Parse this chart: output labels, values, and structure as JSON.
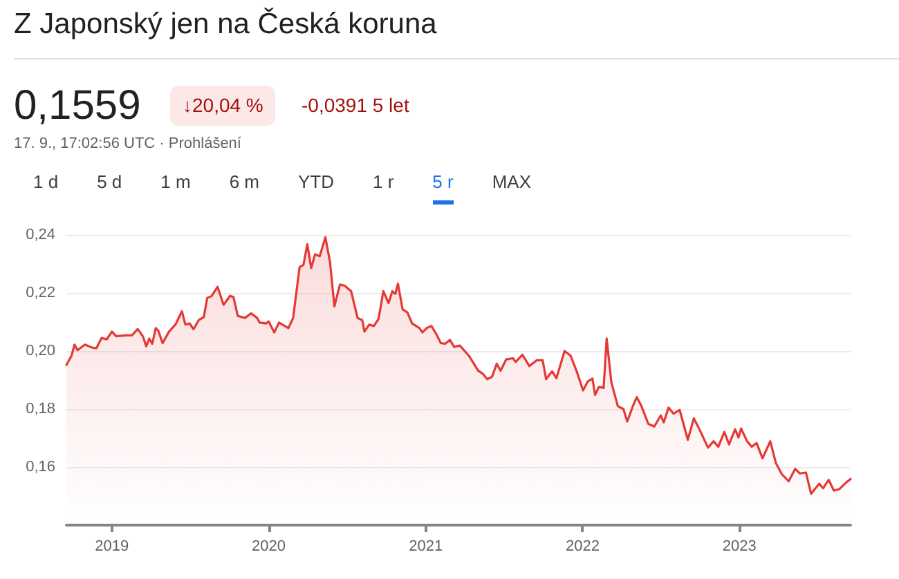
{
  "chart_data": {
    "type": "area",
    "title": "Z Japonský jen na Česká koruna",
    "annotations": [
      "0,1559",
      "↓20,04 %",
      "-0,0391 5 let",
      "17. 9., 17:02:56 UTC · Prohlášení",
      "1 d",
      "5 d",
      "1 m",
      "6 m",
      "YTD",
      "1 r",
      "5 r",
      "MAX"
    ],
    "x": [
      "2018-09-17",
      "2018-09-29",
      "2018-10-06",
      "2018-10-13",
      "2018-10-30",
      "2018-11-17",
      "2018-11-26",
      "2018-12-08",
      "2018-12-20",
      "2019-01-01",
      "2019-01-11",
      "2019-02-02",
      "2019-02-17",
      "2019-03-02",
      "2019-03-14",
      "2019-03-22",
      "2019-03-29",
      "2019-04-05",
      "2019-04-13",
      "2019-04-19",
      "2019-04-29",
      "2019-05-14",
      "2019-05-29",
      "2019-06-13",
      "2019-06-21",
      "2019-07-01",
      "2019-07-10",
      "2019-07-22",
      "2019-08-03",
      "2019-08-11",
      "2019-08-21",
      "2019-09-04",
      "2019-09-18",
      "2019-10-03",
      "2019-10-11",
      "2019-10-21",
      "2019-11-07",
      "2019-11-21",
      "2019-12-05",
      "2019-12-11",
      "2019-12-26",
      "2020-01-01",
      "2020-01-14",
      "2020-01-25",
      "2020-02-16",
      "2020-02-27",
      "2020-03-13",
      "2020-03-22",
      "2020-03-31",
      "2020-04-09",
      "2020-04-18",
      "2020-04-29",
      "2020-05-12",
      "2020-05-23",
      "2020-06-02",
      "2020-06-15",
      "2020-06-26",
      "2020-07-11",
      "2020-07-26",
      "2020-08-06",
      "2020-08-11",
      "2020-08-22",
      "2020-09-02",
      "2020-09-13",
      "2020-09-24",
      "2020-10-06",
      "2020-10-15",
      "2020-10-22",
      "2020-10-28",
      "2020-11-08",
      "2020-11-19",
      "2020-11-30",
      "2020-12-17",
      "2020-12-24",
      "2021-01-03",
      "2021-01-14",
      "2021-01-25",
      "2021-02-05",
      "2021-02-15",
      "2021-02-26",
      "2021-03-08",
      "2021-03-21",
      "2021-04-11",
      "2021-05-03",
      "2021-05-14",
      "2021-05-24",
      "2021-06-04",
      "2021-06-15",
      "2021-06-24",
      "2021-07-07",
      "2021-07-23",
      "2021-07-29",
      "2021-08-14",
      "2021-08-30",
      "2021-09-16",
      "2021-09-30",
      "2021-10-08",
      "2021-10-22",
      "2021-11-01",
      "2021-11-20",
      "2021-12-04",
      "2021-12-19",
      "2022-01-02",
      "2022-01-13",
      "2022-01-24",
      "2022-01-30",
      "2022-02-08",
      "2022-02-19",
      "2022-02-26",
      "2022-03-09",
      "2022-03-24",
      "2022-04-06",
      "2022-04-15",
      "2022-04-28",
      "2022-05-07",
      "2022-05-18",
      "2022-06-03",
      "2022-06-17",
      "2022-07-02",
      "2022-07-09",
      "2022-07-20",
      "2022-08-01",
      "2022-08-15",
      "2022-09-03",
      "2022-09-17",
      "2022-09-30",
      "2022-10-20",
      "2022-11-02",
      "2022-11-13",
      "2022-11-27",
      "2022-12-08",
      "2022-12-22",
      "2022-12-30",
      "2023-01-05",
      "2023-01-19",
      "2023-01-30",
      "2023-02-10",
      "2023-02-24",
      "2023-03-14",
      "2023-03-27",
      "2023-04-10",
      "2023-04-26",
      "2023-05-11",
      "2023-05-22",
      "2023-06-05",
      "2023-06-17",
      "2023-07-06",
      "2023-07-15",
      "2023-07-28",
      "2023-08-09",
      "2023-08-22",
      "2023-09-06",
      "2023-09-17"
    ],
    "series": [
      {
        "color": "#e53935",
        "values": [
          0.1952,
          0.1984,
          0.2022,
          0.2003,
          0.2022,
          0.2011,
          0.201,
          0.2045,
          0.204,
          0.2067,
          0.2051,
          0.2054,
          0.2054,
          0.2076,
          0.2051,
          0.2016,
          0.2043,
          0.2025,
          0.2079,
          0.207,
          0.2027,
          0.2067,
          0.2091,
          0.2137,
          0.2091,
          0.2095,
          0.2075,
          0.2106,
          0.2117,
          0.2183,
          0.2189,
          0.2221,
          0.2159,
          0.219,
          0.2186,
          0.2121,
          0.2114,
          0.213,
          0.2114,
          0.2098,
          0.2095,
          0.2102,
          0.2064,
          0.2098,
          0.2079,
          0.2114,
          0.2289,
          0.2297,
          0.2368,
          0.2286,
          0.2333,
          0.2327,
          0.2392,
          0.2305,
          0.2154,
          0.2229,
          0.2225,
          0.2206,
          0.2114,
          0.2106,
          0.2067,
          0.2091,
          0.2086,
          0.2111,
          0.2206,
          0.2165,
          0.2206,
          0.2197,
          0.2232,
          0.2143,
          0.2133,
          0.2095,
          0.2079,
          0.2064,
          0.2079,
          0.2086,
          0.2059,
          0.2027,
          0.2025,
          0.2038,
          0.2014,
          0.2019,
          0.1984,
          0.1932,
          0.1921,
          0.1903,
          0.1911,
          0.1956,
          0.1932,
          0.1971,
          0.1975,
          0.1962,
          0.1987,
          0.1948,
          0.1968,
          0.1968,
          0.1903,
          0.193,
          0.1906,
          0.2,
          0.1984,
          0.1927,
          0.1864,
          0.1895,
          0.1905,
          0.1849,
          0.1876,
          0.1873,
          0.2043,
          0.1892,
          0.181,
          0.18,
          0.1757,
          0.181,
          0.1841,
          0.181,
          0.1749,
          0.174,
          0.1778,
          0.1754,
          0.1805,
          0.1784,
          0.1797,
          0.1694,
          0.1768,
          0.173,
          0.1667,
          0.1689,
          0.167,
          0.1721,
          0.1678,
          0.173,
          0.1702,
          0.1733,
          0.1689,
          0.167,
          0.1683,
          0.163,
          0.1689,
          0.1614,
          0.1575,
          0.1551,
          0.1594,
          0.1578,
          0.1581,
          0.1508,
          0.1543,
          0.1527,
          0.1556,
          0.1519,
          0.1524,
          0.1546,
          0.1559
        ]
      }
    ],
    "xlim": [
      "2018-09-17",
      "2023-09-17"
    ],
    "xticks": [
      "2019",
      "2020",
      "2021",
      "2022",
      "2023"
    ],
    "ylim": [
      0.14,
      0.24
    ],
    "yticks": [
      {
        "value": 0.16,
        "label": "0,16"
      },
      {
        "value": 0.18,
        "label": "0,18"
      },
      {
        "value": 0.2,
        "label": "0,20"
      },
      {
        "value": 0.22,
        "label": "0,22"
      },
      {
        "value": 0.24,
        "label": "0,24"
      }
    ],
    "grid": "y",
    "marker": "none",
    "line_style": "solid"
  }
}
